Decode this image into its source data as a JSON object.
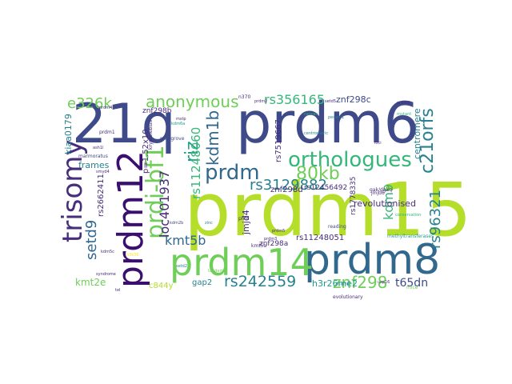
{
  "colors": {
    "background": "#ffffff",
    "dark_purple": "#3b0f70",
    "navy": "#3e4a89",
    "indigo": "#472d7b",
    "blue": "#31688e",
    "teal": "#26828e",
    "cyan_green": "#1f9e89",
    "green": "#35b779",
    "lime": "#6ece58",
    "yellow_green": "#b5de2b",
    "yellow": "#fde725"
  },
  "words": {
    "prdm15": "prdm15",
    "q21": "21q",
    "prdm6": "prdm6",
    "prdm8": "prdm8",
    "prdm14": "prdm14",
    "prdm12": "prdm12",
    "trisomy": "trisomy",
    "orthologues": "orthologues",
    "prdi_bf1": "prdi-bf1",
    "anonymous": "anonymous",
    "e326k": "e326k",
    "rs356165": "rs356165",
    "znf298c": "znf298c",
    "kdm1b": "kdm1b",
    "riz": "riz",
    "rs11248060": "rs11248060",
    "prdm": "prdm",
    "kb80": "80kb",
    "rs3129882": "rs3129882",
    "znf298d": "znf298d",
    "loc401937": "loc401937",
    "kmt5b": "kmt5b",
    "setd9": "setd9",
    "rs2662411": "rs2662411",
    "frames": "frames",
    "rs242559": "rs242559",
    "znf298": "znf298",
    "t65dn": "t65dn",
    "kmt2e": "kmt2e",
    "gap2": "gap2",
    "h3r26me2": "h3r26me2",
    "revolutionised": "revolutionised",
    "kdm9": "kdm9",
    "rs11248051": "rs11248051",
    "rs12456492": "rs12456492",
    "c21orfs": "c21orfs",
    "rs96321": "rs96321",
    "centromere": "centromere",
    "jmjd4": "jmjd4",
    "znf298a": "znf298a",
    "kiaa0179": "kiaa0179",
    "p_value": "p=1.52x10",
    "znf298b": "znf298b",
    "rs7519667": "rs7519667",
    "c844y": "c844y",
    "rs1778335": "rs1778335",
    "gak_dgkq": "gak/dgkq",
    "marmoratus": "marmoratus",
    "kryptolebias": "kryptolebias",
    "mangrove": "mangrove",
    "evolutionary": "evolutionary",
    "prdm1": "prdm1",
    "prdm4": "prdm4",
    "prdm3": "prdm3",
    "prdm5": "prdm5",
    "jmjd6": "jmjd6",
    "kmt5a": "kmt5a",
    "phf8": "phf8",
    "n370": "n370",
    "setd5": "setd5",
    "reading": "reading",
    "conservation": "conservation",
    "centromeric": "centromeric",
    "methyltransferases": "methyltransferases",
    "cancer": "cancer",
    "mice": "mice",
    "syndrome": "syndrome",
    "kdm5c": "kdm5c",
    "mstp": "mstp",
    "ncam2": "ncam2",
    "prdm9": "prdm9",
    "tel": "tel",
    "tiny_1": "kdm2b",
    "tiny_2": "setd2",
    "tiny_3": "ash1l",
    "tiny_4": "smyd4",
    "tiny_5": "kdm6a",
    "tiny_6": "mutant",
    "tiny_7": "loci",
    "tiny_8": "zinc",
    "tiny_9": "prdm2",
    "tiny_10": "pecam1",
    "tiny_11": "tandem",
    "tiny_12": "h3k36",
    "tiny_13": "usp16"
  }
}
